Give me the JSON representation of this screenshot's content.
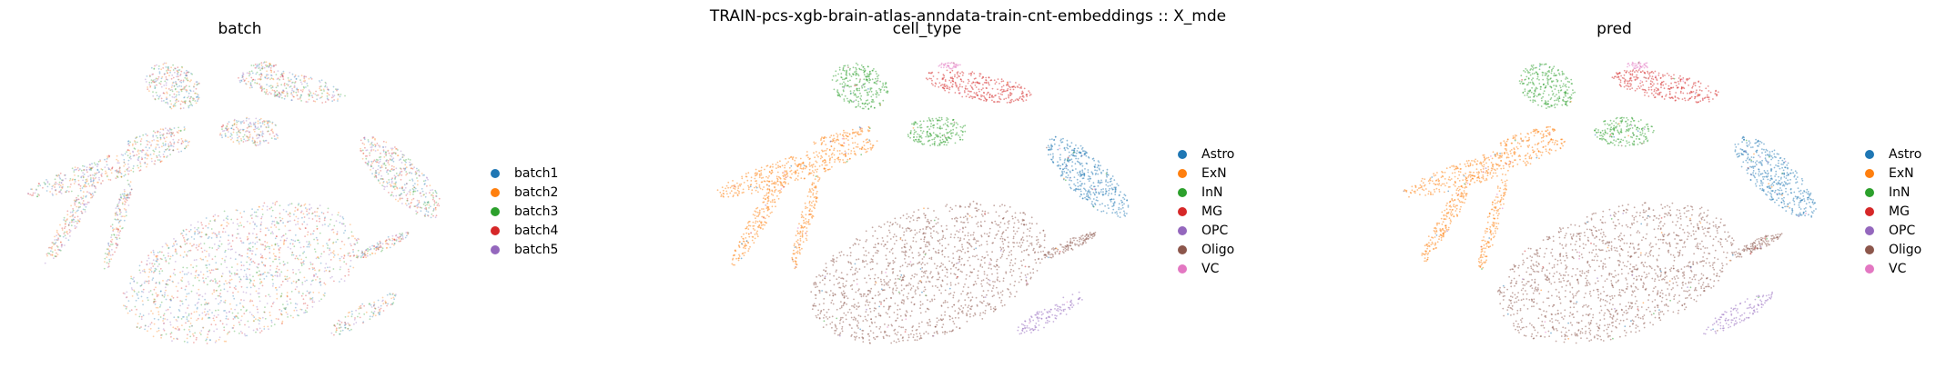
{
  "suptitle": "TRAIN-pcs-xgb-brain-atlas-anndata-train-cnt-embeddings :: X_mde",
  "chart_data": [
    {
      "type": "scatter",
      "title": "batch",
      "xlabel": "",
      "ylabel": "",
      "axes_visible": false,
      "grid": false,
      "legend_position": "right",
      "series": [
        {
          "name": "batch1",
          "color": "#1f77b4"
        },
        {
          "name": "batch2",
          "color": "#ff7f0e"
        },
        {
          "name": "batch3",
          "color": "#2ca02c"
        },
        {
          "name": "batch4",
          "color": "#d62728"
        },
        {
          "name": "batch5",
          "color": "#9467bd"
        }
      ]
    },
    {
      "type": "scatter",
      "title": "cell_type",
      "xlabel": "",
      "ylabel": "",
      "axes_visible": false,
      "grid": false,
      "legend_position": "right",
      "series": [
        {
          "name": "Astro",
          "color": "#1f77b4"
        },
        {
          "name": "ExN",
          "color": "#ff7f0e"
        },
        {
          "name": "InN",
          "color": "#2ca02c"
        },
        {
          "name": "MG",
          "color": "#d62728"
        },
        {
          "name": "OPC",
          "color": "#9467bd"
        },
        {
          "name": "Oligo",
          "color": "#8c564b"
        },
        {
          "name": "VC",
          "color": "#e377c2"
        }
      ]
    },
    {
      "type": "scatter",
      "title": "pred",
      "xlabel": "",
      "ylabel": "",
      "axes_visible": false,
      "grid": false,
      "legend_position": "right",
      "series": [
        {
          "name": "Astro",
          "color": "#1f77b4"
        },
        {
          "name": "ExN",
          "color": "#ff7f0e"
        },
        {
          "name": "InN",
          "color": "#2ca02c"
        },
        {
          "name": "MG",
          "color": "#d62728"
        },
        {
          "name": "OPC",
          "color": "#9467bd"
        },
        {
          "name": "Oligo",
          "color": "#8c564b"
        },
        {
          "name": "VC",
          "color": "#e377c2"
        }
      ]
    }
  ]
}
